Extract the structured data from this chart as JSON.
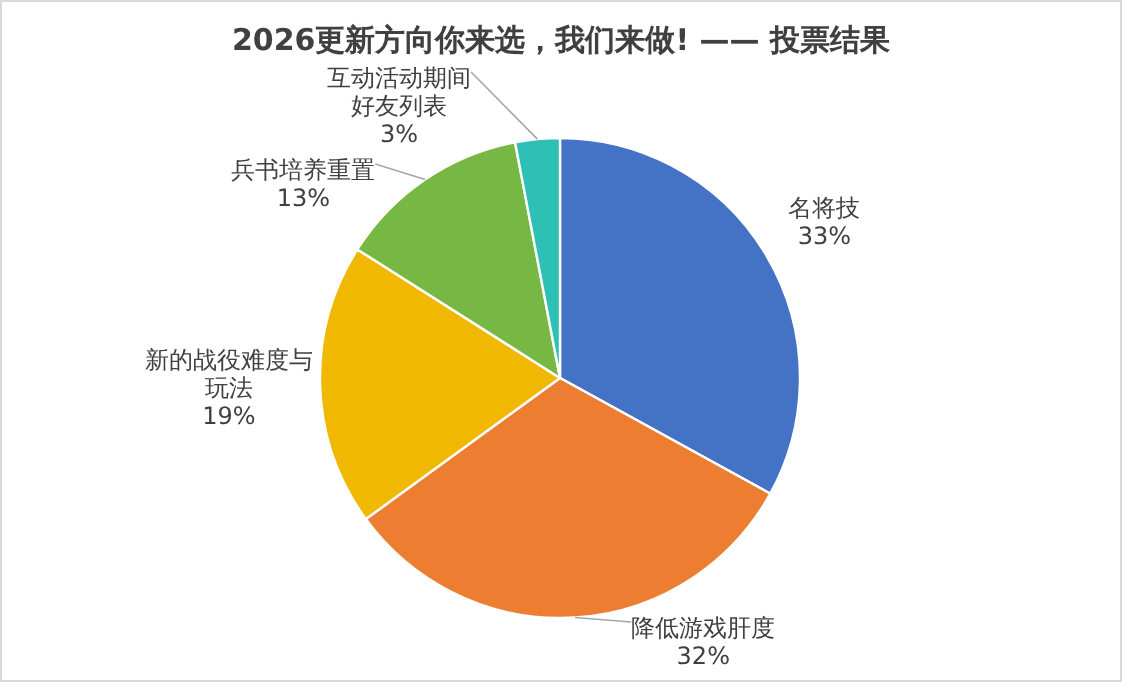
{
  "chart_data": {
    "type": "pie",
    "title": "2026更新方向你来选，我们来做! —— 投票结果",
    "categories": [
      "名将技",
      "降低游戏肝度",
      "新的战役难度与玩法",
      "兵书培养重置",
      "互动活动期间好友列表"
    ],
    "values": [
      33,
      32,
      19,
      13,
      3
    ],
    "value_labels": [
      "33%",
      "32%",
      "19%",
      "13%",
      "3%"
    ],
    "colors": [
      "#4472c4",
      "#ed7d31",
      "#f0b800",
      "#76b843",
      "#2ec0b4"
    ]
  }
}
